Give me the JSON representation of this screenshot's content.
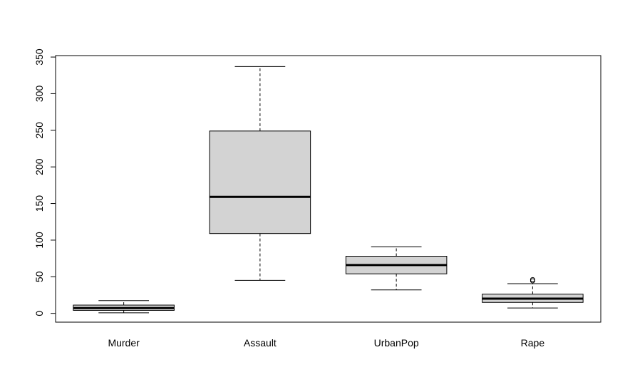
{
  "chart_data": {
    "type": "boxplot",
    "title": "",
    "xlabel": "",
    "ylabel": "",
    "ylim": [
      -12,
      352
    ],
    "yticks": [
      0,
      50,
      100,
      150,
      200,
      250,
      300,
      350
    ],
    "yticks_text": [
      "0",
      "50",
      "100",
      "150",
      "200",
      "250",
      "300",
      "350"
    ],
    "categories": [
      "Murder",
      "Assault",
      "UrbanPop",
      "Rape"
    ],
    "boxes": [
      {
        "name": "Murder",
        "min": 0.8,
        "q1": 4.1,
        "median": 7.2,
        "q3": 11.3,
        "max": 17.4,
        "outliers": []
      },
      {
        "name": "Assault",
        "min": 45,
        "q1": 109,
        "median": 159,
        "q3": 249,
        "max": 337,
        "outliers": []
      },
      {
        "name": "UrbanPop",
        "min": 32,
        "q1": 54,
        "median": 66,
        "q3": 78,
        "max": 91,
        "outliers": []
      },
      {
        "name": "Rape",
        "min": 7.3,
        "q1": 15.0,
        "median": 20.1,
        "q3": 26.2,
        "max": 40.6,
        "outliers": [
          44.5,
          46.0
        ]
      }
    ],
    "box_fill": "#d3d3d3",
    "grid": false,
    "legend": "none"
  }
}
